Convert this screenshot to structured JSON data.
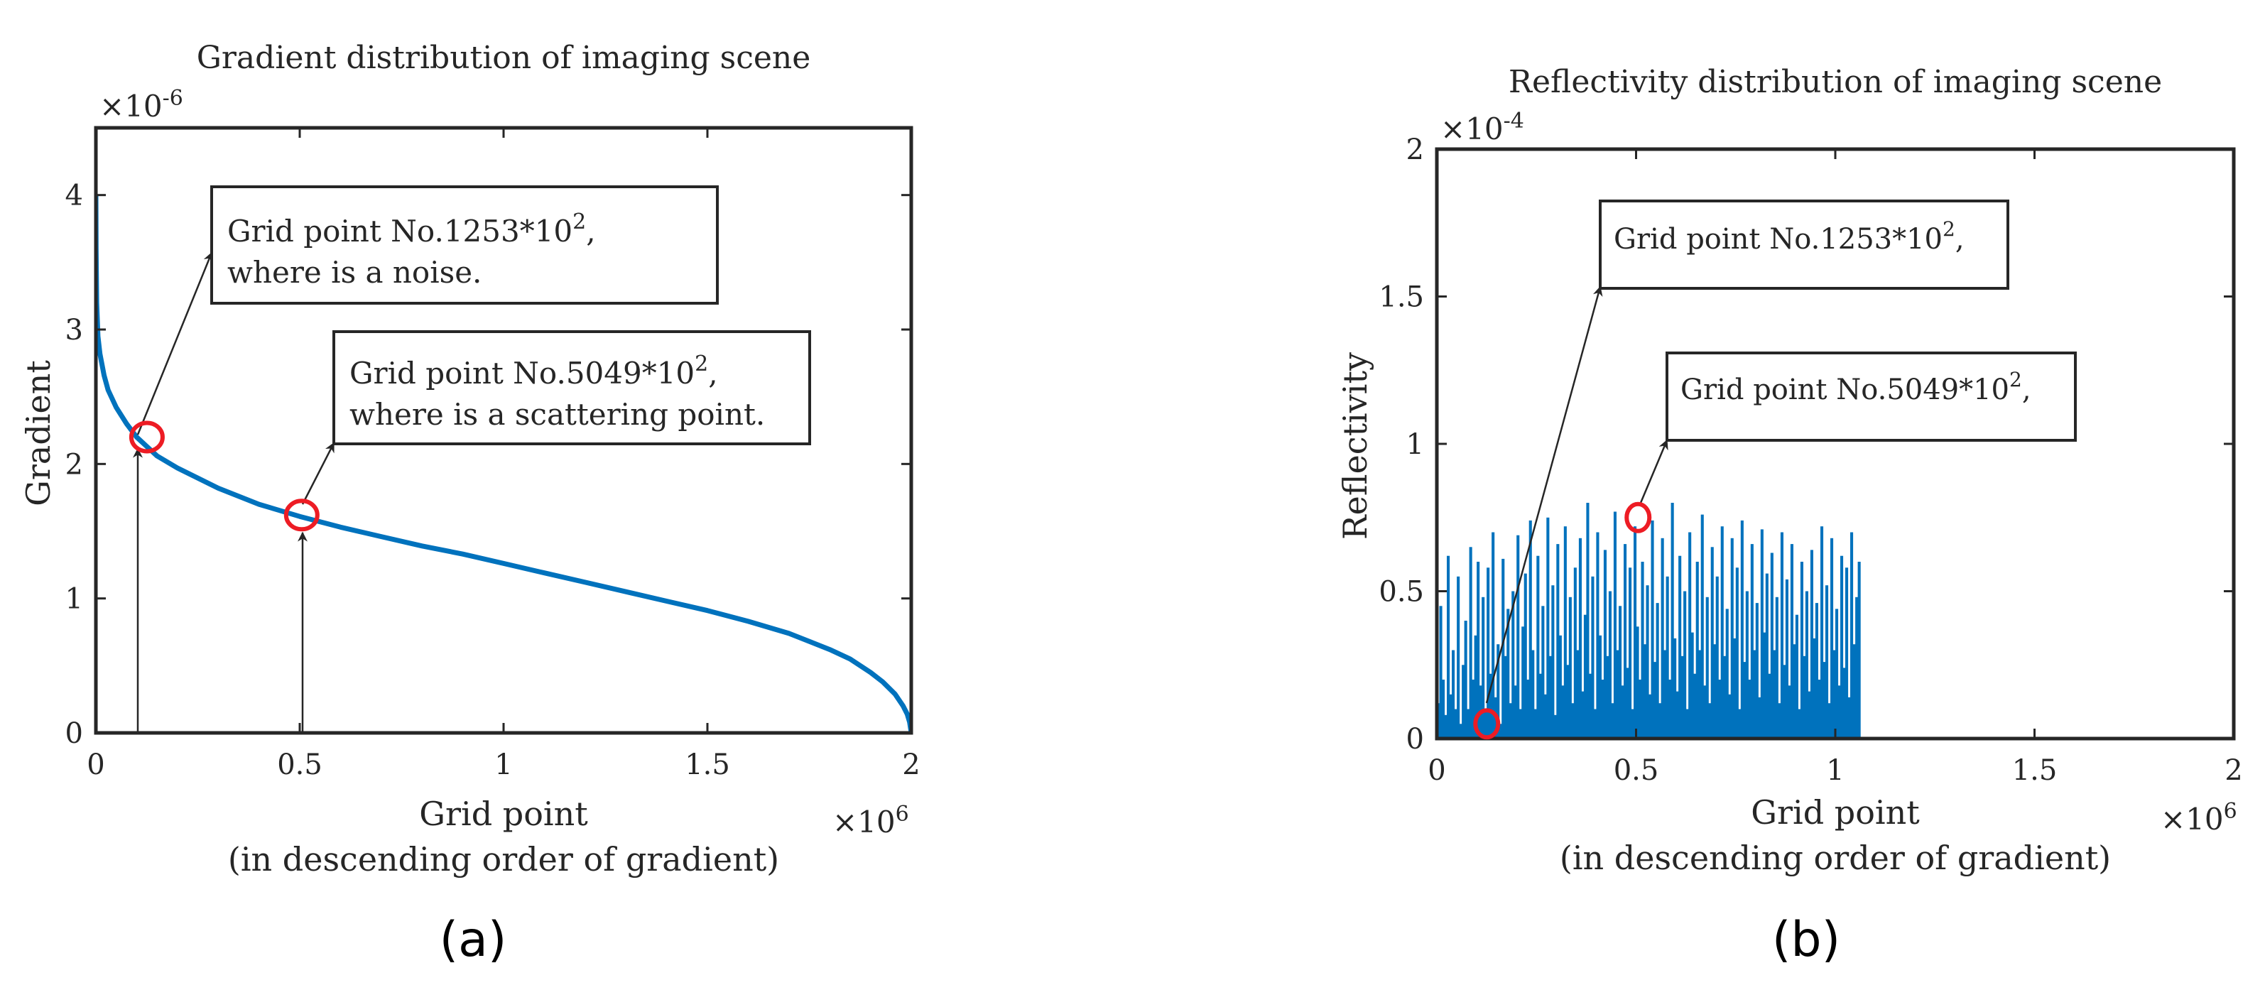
{
  "figure": {
    "panel_labels": [
      "(a)",
      "(b)"
    ]
  },
  "chart_data": [
    {
      "type": "line",
      "title": "Gradient distribution of imaging scene",
      "xlabel": "Grid point",
      "xlabel_sub": "(in descending order of gradient)",
      "ylabel": "Gradient",
      "x_exponent": "×10",
      "x_exponent_power": "6",
      "y_exponent": "×10",
      "y_exponent_power": "-6",
      "xlim": [
        0,
        2
      ],
      "ylim": [
        0,
        4.5
      ],
      "x_ticks": [
        0,
        0.5,
        1,
        1.5,
        2
      ],
      "x_tick_labels": [
        "0",
        "0.5",
        "1",
        "1.5",
        "2"
      ],
      "y_ticks": [
        0,
        1,
        2,
        3,
        4
      ],
      "y_tick_labels": [
        "0",
        "1",
        "2",
        "3",
        "4"
      ],
      "grid": false,
      "color": "#0072BD",
      "series": [
        {
          "x": [
            0,
            0.0005,
            0.002,
            0.005,
            0.01,
            0.02,
            0.03,
            0.05,
            0.075,
            0.1,
            0.15,
            0.2,
            0.3,
            0.4,
            0.5,
            0.6,
            0.7,
            0.8,
            0.9,
            1.0,
            1.1,
            1.2,
            1.3,
            1.4,
            1.5,
            1.6,
            1.7,
            1.8,
            1.85,
            1.9,
            1.93,
            1.96,
            1.98,
            1.99,
            1.996,
            2.0
          ],
          "y": [
            4.0,
            3.6,
            3.2,
            2.95,
            2.82,
            2.66,
            2.55,
            2.42,
            2.3,
            2.2,
            2.06,
            1.97,
            1.82,
            1.7,
            1.61,
            1.53,
            1.46,
            1.39,
            1.33,
            1.26,
            1.19,
            1.12,
            1.05,
            0.98,
            0.91,
            0.83,
            0.74,
            0.62,
            0.55,
            0.45,
            0.38,
            0.29,
            0.2,
            0.14,
            0.08,
            0.0
          ]
        }
      ],
      "highlights": [
        {
          "x": 0.1253,
          "y": 2.2
        },
        {
          "x": 0.5049,
          "y": 1.62
        }
      ],
      "annotations": [
        {
          "lines": [
            "Grid point No.1253*10",
            "where is a noise."
          ],
          "sup": "2",
          "after_sup": ","
        },
        {
          "lines": [
            "Grid point No.5049*10",
            "where is a scattering point."
          ],
          "sup": "2",
          "after_sup": ","
        }
      ]
    },
    {
      "type": "bar",
      "title": "Reflectivity distribution of imaging scene",
      "xlabel": "Grid point",
      "xlabel_sub": "(in descending order of gradient)",
      "ylabel": "Reflectivity",
      "x_exponent": "×10",
      "x_exponent_power": "6",
      "y_exponent": "×10",
      "y_exponent_power": "-4",
      "xlim": [
        0,
        2
      ],
      "ylim": [
        0,
        2
      ],
      "x_ticks": [
        0,
        0.5,
        1,
        1.5,
        2
      ],
      "x_tick_labels": [
        "0",
        "0.5",
        "1",
        "1.5",
        "2"
      ],
      "y_ticks": [
        0,
        0.5,
        1,
        1.5,
        2
      ],
      "y_tick_labels": [
        "0",
        "0.5",
        "1",
        "1.5",
        "2"
      ],
      "grid": false,
      "color": "#0072BD",
      "series": [
        {
          "x_start": 0,
          "x_step": 0.00625,
          "values": [
            0.12,
            0.45,
            0.2,
            0.08,
            0.62,
            0.15,
            0.3,
            0.1,
            0.55,
            0.05,
            0.25,
            0.4,
            0.1,
            0.65,
            0.2,
            0.35,
            0.6,
            0.18,
            0.48,
            0.1,
            0.58,
            0.22,
            0.7,
            0.14,
            0.32,
            0.05,
            0.61,
            0.28,
            0.44,
            0.12,
            0.5,
            0.18,
            0.69,
            0.1,
            0.38,
            0.56,
            0.2,
            0.74,
            0.3,
            0.1,
            0.62,
            0.22,
            0.45,
            0.15,
            0.75,
            0.28,
            0.52,
            0.08,
            0.66,
            0.35,
            0.18,
            0.72,
            0.25,
            0.48,
            0.12,
            0.58,
            0.3,
            0.68,
            0.16,
            0.42,
            0.8,
            0.22,
            0.55,
            0.1,
            0.7,
            0.35,
            0.2,
            0.64,
            0.28,
            0.5,
            0.12,
            0.77,
            0.3,
            0.45,
            0.18,
            0.66,
            0.24,
            0.58,
            0.1,
            0.72,
            0.38,
            0.2,
            0.6,
            0.32,
            0.52,
            0.15,
            0.74,
            0.26,
            0.46,
            0.12,
            0.68,
            0.3,
            0.55,
            0.2,
            0.8,
            0.34,
            0.16,
            0.62,
            0.28,
            0.5,
            0.1,
            0.7,
            0.36,
            0.22,
            0.6,
            0.3,
            0.76,
            0.18,
            0.48,
            0.12,
            0.65,
            0.32,
            0.55,
            0.2,
            0.72,
            0.28,
            0.44,
            0.15,
            0.68,
            0.34,
            0.58,
            0.1,
            0.74,
            0.26,
            0.5,
            0.2,
            0.66,
            0.3,
            0.46,
            0.14,
            0.71,
            0.36,
            0.56,
            0.22,
            0.63,
            0.3,
            0.48,
            0.12,
            0.7,
            0.25,
            0.54,
            0.18,
            0.66,
            0.32,
            0.42,
            0.1,
            0.6,
            0.28,
            0.5,
            0.16,
            0.64,
            0.34,
            0.46,
            0.2,
            0.72,
            0.26,
            0.52,
            0.12,
            0.68,
            0.3,
            0.44,
            0.18,
            0.62,
            0.24,
            0.58,
            0.14,
            0.7,
            0.32,
            0.48,
            0.6
          ]
        }
      ],
      "highlights": [
        {
          "x": 0.1253,
          "y": 0.05
        },
        {
          "x": 0.5049,
          "y": 0.75
        }
      ],
      "annotations": [
        {
          "lines": [
            "Grid point No.1253*10"
          ],
          "sup": "2",
          "after_sup": ","
        },
        {
          "lines": [
            "Grid point No.5049*10"
          ],
          "sup": "2",
          "after_sup": ","
        }
      ]
    }
  ]
}
